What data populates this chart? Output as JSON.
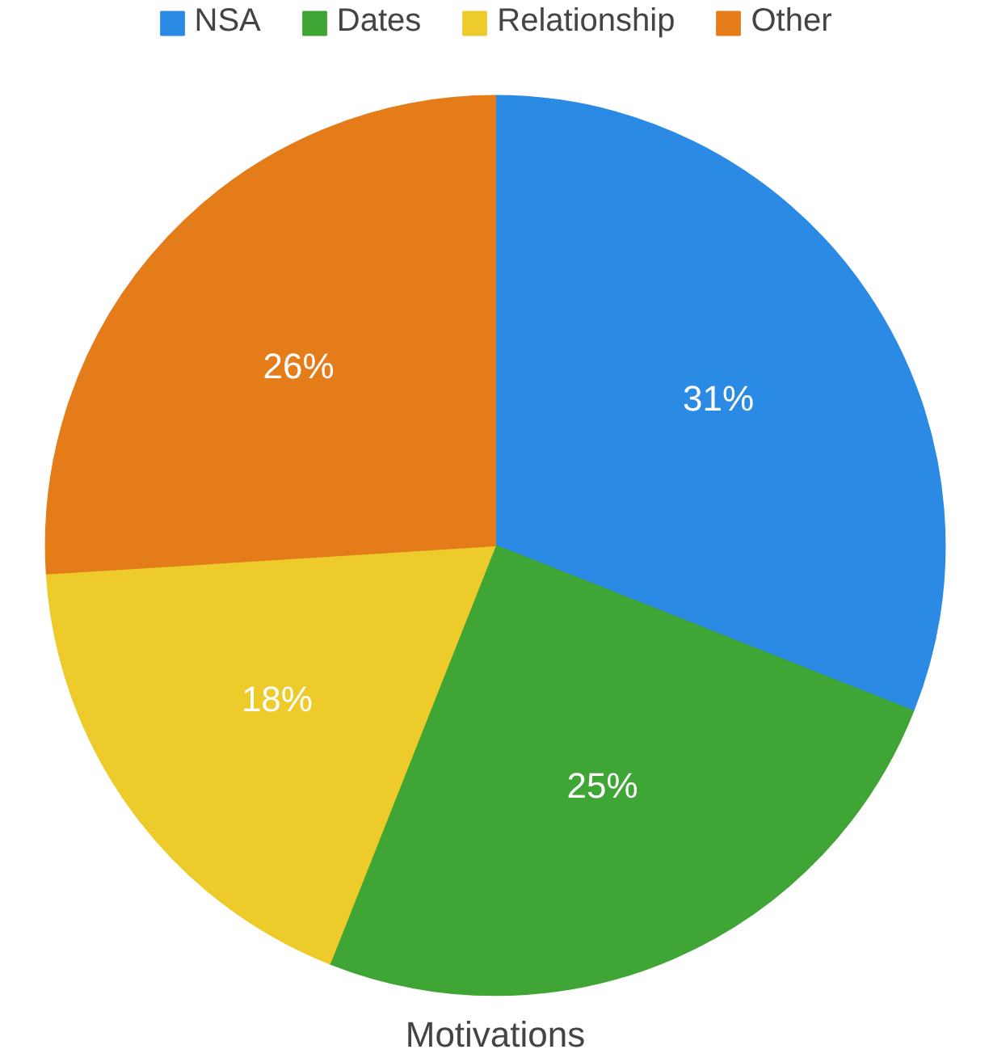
{
  "chart_data": {
    "type": "pie",
    "title": "Motivations",
    "categories": [
      "NSA",
      "Dates",
      "Relationship",
      "Other"
    ],
    "values": [
      31,
      25,
      18,
      26
    ],
    "value_labels": [
      "31%",
      "25%",
      "18%",
      "26%"
    ],
    "colors": [
      "#2a8ae4",
      "#3fa535",
      "#eccb2a",
      "#e57c1a"
    ],
    "legend": "top"
  }
}
